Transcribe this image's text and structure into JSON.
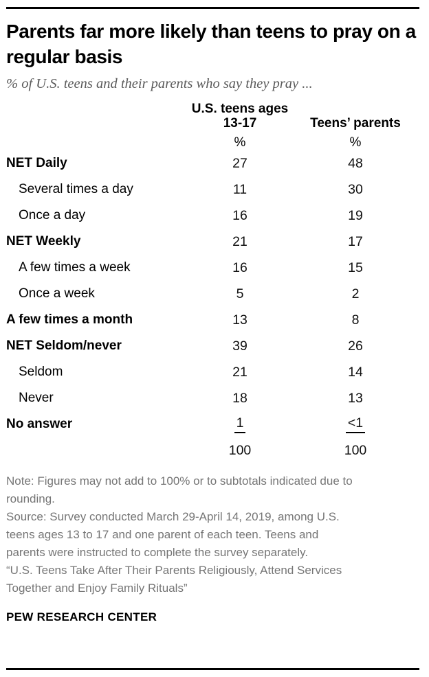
{
  "header": {
    "title": "Parents far more likely than teens to pray on a regular basis",
    "subtitle": "% of U.S. teens and their parents who say they pray ..."
  },
  "chart_data": {
    "type": "table",
    "title": "Parents far more likely than teens to pray on a regular basis",
    "subtitle": "% of U.S. teens and their parents who say they pray ...",
    "columns": [
      "U.S. teens ages 13-17",
      "Teens’ parents"
    ],
    "unit_row": [
      "%",
      "%"
    ],
    "rows": [
      {
        "label": "NET Daily",
        "bold": true,
        "indent": false,
        "underline": false,
        "values": [
          "27",
          "48"
        ]
      },
      {
        "label": "Several times a day",
        "bold": false,
        "indent": true,
        "underline": false,
        "values": [
          "11",
          "30"
        ]
      },
      {
        "label": "Once a day",
        "bold": false,
        "indent": true,
        "underline": false,
        "values": [
          "16",
          "19"
        ]
      },
      {
        "label": "NET Weekly",
        "bold": true,
        "indent": false,
        "underline": false,
        "values": [
          "21",
          "17"
        ]
      },
      {
        "label": "A few times a week",
        "bold": false,
        "indent": true,
        "underline": false,
        "values": [
          "16",
          "15"
        ]
      },
      {
        "label": "Once a week",
        "bold": false,
        "indent": true,
        "underline": false,
        "values": [
          "5",
          "2"
        ]
      },
      {
        "label": "A few times a month",
        "bold": true,
        "indent": false,
        "underline": false,
        "values": [
          "13",
          "8"
        ]
      },
      {
        "label": "NET Seldom/never",
        "bold": true,
        "indent": false,
        "underline": false,
        "values": [
          "39",
          "26"
        ]
      },
      {
        "label": "Seldom",
        "bold": false,
        "indent": true,
        "underline": false,
        "values": [
          "21",
          "14"
        ]
      },
      {
        "label": "Never",
        "bold": false,
        "indent": true,
        "underline": false,
        "values": [
          "18",
          "13"
        ]
      },
      {
        "label": "No answer",
        "bold": true,
        "indent": false,
        "underline": true,
        "values": [
          "1",
          "<1"
        ]
      },
      {
        "label": "",
        "bold": false,
        "indent": false,
        "underline": false,
        "values": [
          "100",
          "100"
        ]
      }
    ]
  },
  "footer": {
    "note": "Note: Figures may not add to 100% or to subtotals indicated due to\nrounding.",
    "source": "Source: Survey conducted March 29-April 14, 2019, among U.S.\nteens ages 13 to 17 and one parent of each teen. Teens and\nparents were instructed to complete the survey separately.",
    "report": "“U.S. Teens Take After Their Parents Religiously, Attend Services\nTogether and Enjoy Family Rituals”",
    "brand": "PEW RESEARCH CENTER"
  },
  "colors": {
    "text": "#000000",
    "subtitle": "#5a5a5a",
    "note": "#757575",
    "rule": "#000000"
  }
}
